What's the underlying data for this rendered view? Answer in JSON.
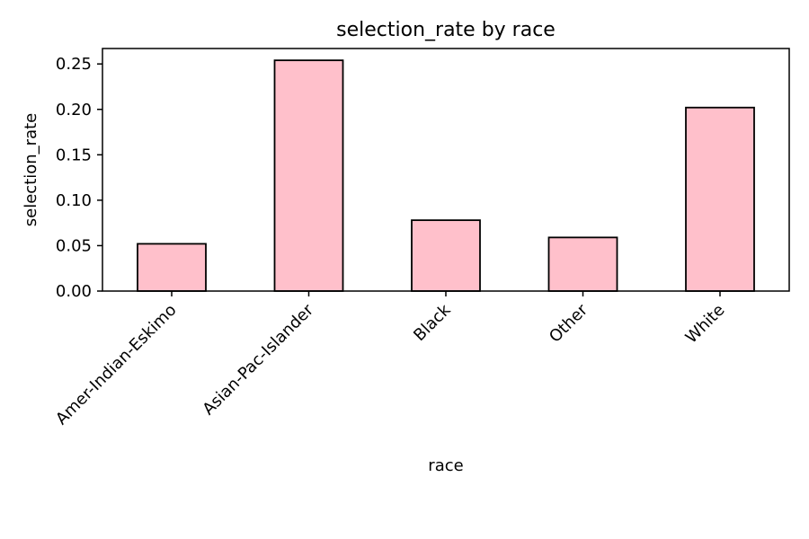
{
  "chart_data": {
    "type": "bar",
    "title": "selection_rate by race",
    "xlabel": "race",
    "ylabel": "selection_rate",
    "categories": [
      "Amer-Indian-Eskimo",
      "Asian-Pac-Islander",
      "Black",
      "Other",
      "White"
    ],
    "values": [
      0.052,
      0.254,
      0.078,
      0.059,
      0.202
    ],
    "ylim": [
      0,
      0.267
    ],
    "yticks": [
      0.0,
      0.05,
      0.1,
      0.15,
      0.2,
      0.25
    ],
    "ytick_labels": [
      "0.00",
      "0.05",
      "0.10",
      "0.15",
      "0.20",
      "0.25"
    ],
    "grid": false,
    "legend": "none",
    "colors": {
      "bar_fill": "#ffc0cb",
      "bar_edge": "#000000"
    }
  }
}
